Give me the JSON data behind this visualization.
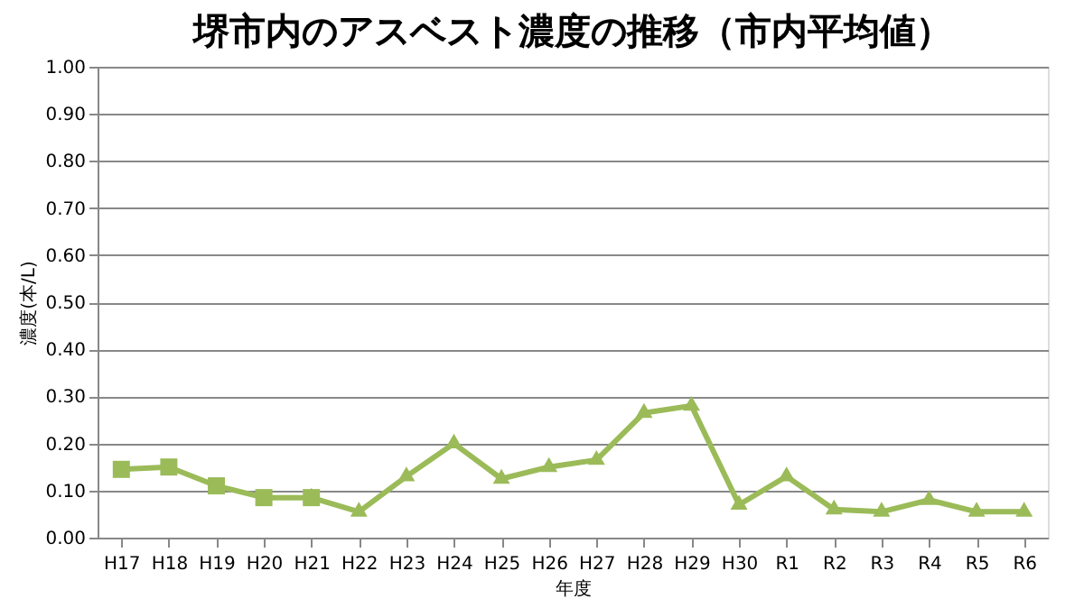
{
  "chart_data": {
    "type": "line",
    "title": "堺市内のアスベスト濃度の推移（市内平均値）",
    "xlabel": "年度",
    "ylabel": "濃度(本/L)",
    "categories": [
      "H17",
      "H18",
      "H19",
      "H20",
      "H21",
      "H22",
      "H23",
      "H24",
      "H25",
      "H26",
      "H27",
      "H28",
      "H29",
      "H30",
      "R1",
      "R2",
      "R3",
      "R4",
      "R5",
      "R6"
    ],
    "series": [
      {
        "color": "#9bbb59",
        "marker": "square",
        "values": [
          0.145,
          0.15,
          0.11,
          0.085,
          0.085,
          null,
          null,
          null,
          null,
          null,
          null,
          null,
          null,
          null,
          null,
          null,
          null,
          null,
          null,
          null
        ]
      },
      {
        "color": "#9bbb59",
        "marker": "triangle",
        "values": [
          null,
          null,
          null,
          null,
          0.085,
          0.055,
          0.13,
          0.2,
          0.125,
          0.15,
          0.165,
          0.265,
          0.28,
          0.07,
          0.13,
          0.06,
          0.055,
          0.08,
          0.055,
          0.055
        ]
      }
    ],
    "ylim": [
      0,
      1
    ],
    "yticks": [
      {
        "value": 0,
        "label": "0.00"
      },
      {
        "value": 0.1,
        "label": "0.10"
      },
      {
        "value": 0.2,
        "label": "0.20"
      },
      {
        "value": 0.3,
        "label": "0.30"
      },
      {
        "value": 0.4,
        "label": "0.40"
      },
      {
        "value": 0.5,
        "label": "0.50"
      },
      {
        "value": 0.6,
        "label": "0.60"
      },
      {
        "value": 0.7,
        "label": "0.70"
      },
      {
        "value": 0.8,
        "label": "0.80"
      },
      {
        "value": 0.9,
        "label": "0.90"
      },
      {
        "value": 1,
        "label": "1.00"
      }
    ],
    "grid": "y"
  }
}
